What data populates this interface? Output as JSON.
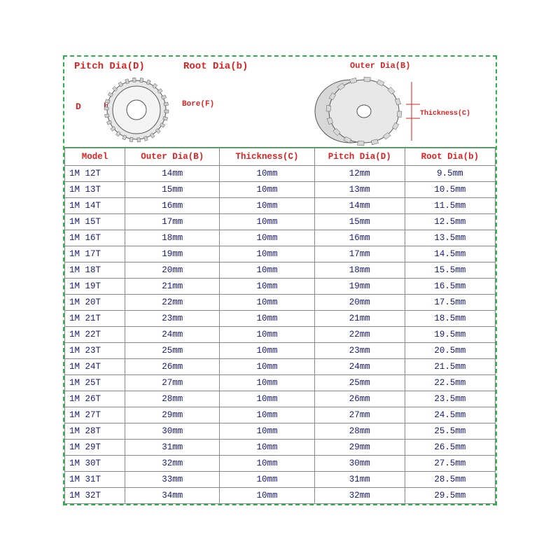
{
  "diagram": {
    "pitch_dia_label": "Pitch Dia(D)",
    "root_dia_label": "Root Dia(b)",
    "outer_dia_label": "Outer Dia(B)",
    "thickness_label": "Thickness(C)",
    "bore_label": "Bore(F)",
    "dim_D": "D",
    "dim_b": "b",
    "colors": {
      "label_red": "#d22222",
      "border_green": "#2bb24a",
      "cell_text": "#1a1a7a",
      "grid_border": "#888888",
      "background": "#ffffff",
      "gear_fill": "#dcdcdc",
      "gear_outline": "#555555"
    }
  },
  "table": {
    "columns": [
      "Model",
      "Outer Dia(B)",
      "Thickness(C)",
      "Pitch Dia(D)",
      "Root Dia(b)"
    ],
    "column_align": [
      "left",
      "center",
      "center",
      "center",
      "center"
    ],
    "header_color": "#d22222",
    "cell_color": "#1a1a7a",
    "font_family": "Courier New",
    "font_size_pt": 10,
    "rows": [
      [
        "1M 12T",
        "14mm",
        "10mm",
        "12mm",
        "9.5mm"
      ],
      [
        "1M 13T",
        "15mm",
        "10mm",
        "13mm",
        "10.5mm"
      ],
      [
        "1M 14T",
        "16mm",
        "10mm",
        "14mm",
        "11.5mm"
      ],
      [
        "1M 15T",
        "17mm",
        "10mm",
        "15mm",
        "12.5mm"
      ],
      [
        "1M 16T",
        "18mm",
        "10mm",
        "16mm",
        "13.5mm"
      ],
      [
        "1M 17T",
        "19mm",
        "10mm",
        "17mm",
        "14.5mm"
      ],
      [
        "1M 18T",
        "20mm",
        "10mm",
        "18mm",
        "15.5mm"
      ],
      [
        "1M 19T",
        "21mm",
        "10mm",
        "19mm",
        "16.5mm"
      ],
      [
        "1M 20T",
        "22mm",
        "10mm",
        "20mm",
        "17.5mm"
      ],
      [
        "1M 21T",
        "23mm",
        "10mm",
        "21mm",
        "18.5mm"
      ],
      [
        "1M 22T",
        "24mm",
        "10mm",
        "22mm",
        "19.5mm"
      ],
      [
        "1M 23T",
        "25mm",
        "10mm",
        "23mm",
        "20.5mm"
      ],
      [
        "1M 24T",
        "26mm",
        "10mm",
        "24mm",
        "21.5mm"
      ],
      [
        "1M 25T",
        "27mm",
        "10mm",
        "25mm",
        "22.5mm"
      ],
      [
        "1M 26T",
        "28mm",
        "10mm",
        "26mm",
        "23.5mm"
      ],
      [
        "1M 27T",
        "29mm",
        "10mm",
        "27mm",
        "24.5mm"
      ],
      [
        "1M 28T",
        "30mm",
        "10mm",
        "28mm",
        "25.5mm"
      ],
      [
        "1M 29T",
        "31mm",
        "10mm",
        "29mm",
        "26.5mm"
      ],
      [
        "1M 30T",
        "32mm",
        "10mm",
        "30mm",
        "27.5mm"
      ],
      [
        "1M 31T",
        "33mm",
        "10mm",
        "31mm",
        "28.5mm"
      ],
      [
        "1M 32T",
        "34mm",
        "10mm",
        "32mm",
        "29.5mm"
      ]
    ]
  }
}
